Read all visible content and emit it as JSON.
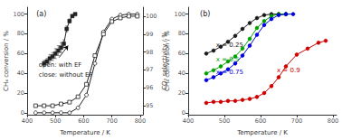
{
  "chart_data": [
    {
      "type": "line",
      "xlabel": "Temperature / K",
      "ylabel": "CH₄ conversion / %",
      "y2label": "CO₂ selectivity / %",
      "xlim": [
        400,
        810
      ],
      "xticks": [
        400,
        500,
        600,
        700,
        800
      ],
      "ylim": [
        -2,
        107
      ],
      "yticks": [
        0,
        20,
        40,
        60,
        80,
        100
      ],
      "y2lim": [
        94.5,
        100.5
      ],
      "y2ticks": [
        95,
        96,
        97,
        98,
        99,
        100
      ],
      "grid": false,
      "annotations": [
        {
          "text": "(a)"
        },
        {
          "text": "open: with EF"
        },
        {
          "text": "close: without EF"
        }
      ],
      "arrow": {
        "from": [
          513,
          56
        ],
        "to": [
          545,
          68
        ]
      },
      "series": [
        {
          "x": [
            430,
            460,
            490,
            520,
            550,
            580,
            610,
            640,
            670,
            700,
            730,
            760,
            790
          ],
          "values": [
            0,
            0,
            0,
            0,
            0,
            5,
            18,
            50,
            82,
            95,
            99,
            100,
            100
          ],
          "color": "#222222",
          "marker": "open_circle"
        },
        {
          "x": [
            460,
            470,
            480,
            490,
            500,
            510,
            520,
            530,
            540,
            550,
            560,
            570
          ],
          "values": [
            50,
            52,
            55,
            57,
            60,
            63,
            66,
            70,
            85,
            93,
            98,
            100
          ],
          "errors": [
            3,
            3,
            4,
            4,
            5,
            5,
            5,
            4,
            3,
            2,
            1,
            0
          ],
          "color": "#222222",
          "marker": "square"
        },
        {
          "x": [
            430,
            460,
            490,
            520,
            550,
            580,
            610,
            640,
            670,
            700,
            730,
            760,
            790
          ],
          "values": [
            95.0,
            95.0,
            95.0,
            95.1,
            95.2,
            95.5,
            96.2,
            97.8,
            99.0,
            99.7,
            99.9,
            100.0,
            100.0
          ],
          "axis": "y2",
          "color": "#222222",
          "marker": "open_square"
        }
      ]
    },
    {
      "type": "line",
      "xlabel": "Temperature / K",
      "ylabel": "CH₄ conversion / %",
      "xlim": [
        400,
        810
      ],
      "xticks": [
        400,
        500,
        600,
        700,
        800
      ],
      "ylim": [
        -2,
        107
      ],
      "yticks": [
        0,
        20,
        40,
        60,
        80,
        100
      ],
      "grid": false,
      "annotations": [
        {
          "text": "(b)"
        },
        {
          "text": "x = 0.25",
          "x": 477,
          "y": 65,
          "color": "#1a1a1a"
        },
        {
          "text": "x = 0.5",
          "x": 477,
          "y": 51,
          "color": "#00a000"
        },
        {
          "text": "x = 0.75",
          "x": 477,
          "y": 38,
          "color": "#0000dd"
        },
        {
          "text": "x = 0.9",
          "x": 645,
          "y": 40,
          "color": "#cc0000"
        }
      ],
      "series": [
        {
          "x": [
            450,
            470,
            490,
            510,
            530,
            550,
            570,
            590,
            610,
            630,
            650,
            670
          ],
          "values": [
            60,
            63,
            67,
            72,
            78,
            85,
            91,
            96,
            99,
            100,
            100,
            100
          ],
          "color": "#1a1a1a",
          "marker": "circle"
        },
        {
          "x": [
            450,
            470,
            490,
            510,
            530,
            550,
            570,
            590,
            610,
            630,
            650,
            670
          ],
          "values": [
            40,
            43,
            47,
            52,
            57,
            65,
            75,
            86,
            93,
            98,
            100,
            100
          ],
          "color": "#00a000",
          "marker": "circle"
        },
        {
          "x": [
            450,
            470,
            490,
            510,
            530,
            550,
            570,
            590,
            610,
            630,
            650,
            670,
            690
          ],
          "values": [
            33,
            36,
            40,
            44,
            50,
            58,
            68,
            79,
            89,
            95,
            99,
            100,
            100
          ],
          "color": "#0000dd",
          "marker": "circle"
        },
        {
          "x": [
            450,
            470,
            490,
            510,
            530,
            550,
            570,
            590,
            610,
            630,
            650,
            670,
            700,
            730,
            760,
            780
          ],
          "values": [
            10,
            11,
            11,
            12,
            12,
            13,
            14,
            16,
            20,
            27,
            36,
            47,
            59,
            65,
            71,
            73
          ],
          "color": "#cc0000",
          "marker": "circle"
        }
      ]
    }
  ]
}
